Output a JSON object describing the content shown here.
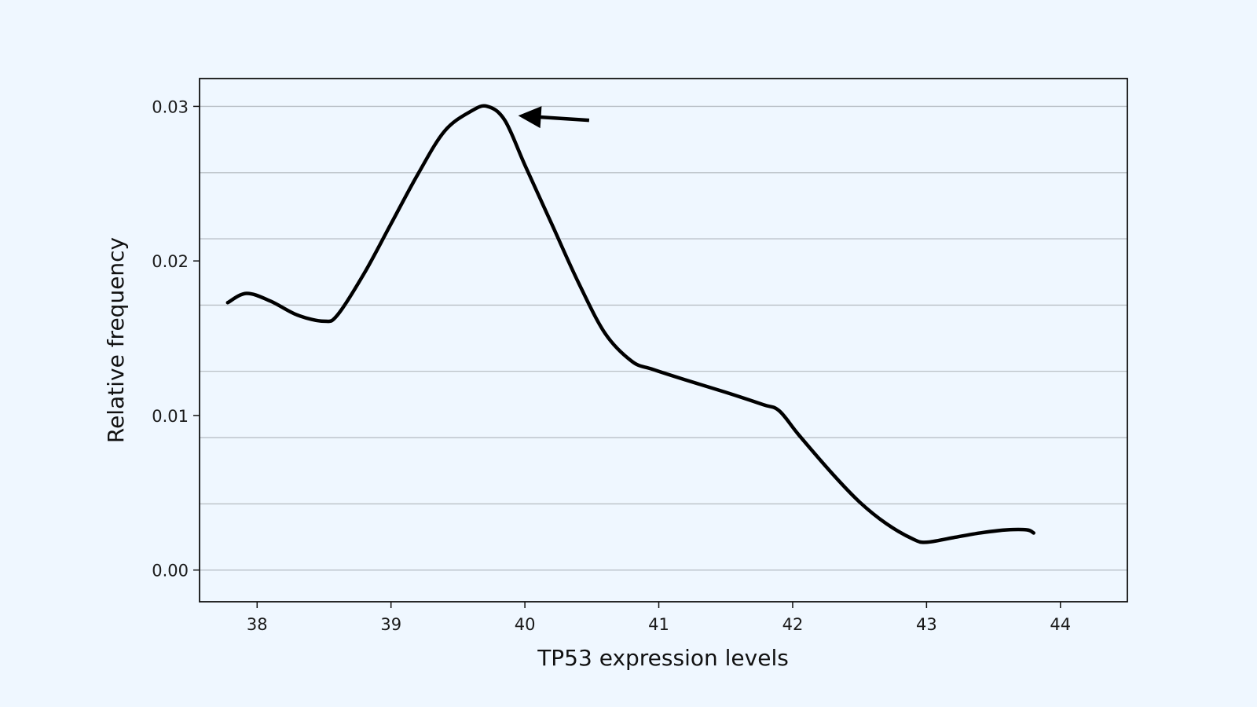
{
  "chart_data": {
    "type": "line",
    "title": "",
    "xlabel": "TP53 expression levels",
    "ylabel": "Relative frequency",
    "xlim": [
      37.57,
      44.5
    ],
    "ylim": [
      -0.00205,
      0.0318
    ],
    "x_ticks": [
      38,
      39,
      40,
      41,
      42,
      43,
      44
    ],
    "x_tick_labels": [
      "38",
      "39",
      "40",
      "41",
      "42",
      "43",
      "44"
    ],
    "y_ticks": [
      0.0,
      0.01,
      0.02,
      0.03
    ],
    "y_tick_labels": [
      "0.00",
      "0.01",
      "0.02",
      "0.03"
    ],
    "grid": "horizontal",
    "grid_lines_y": [
      0.0,
      0.00428,
      0.00857,
      0.01286,
      0.01714,
      0.02143,
      0.02571,
      0.03
    ],
    "legend": "none",
    "series": [
      {
        "color": "#000000",
        "x": [
          37.78,
          37.92,
          38.1,
          38.3,
          38.5,
          38.6,
          38.8,
          39.0,
          39.2,
          39.4,
          39.6,
          39.72,
          39.85,
          40.0,
          40.2,
          40.4,
          40.6,
          40.8,
          40.95,
          41.2,
          41.5,
          41.78,
          41.9,
          42.05,
          42.3,
          42.5,
          42.7,
          42.9,
          43.0,
          43.2,
          43.4,
          43.6,
          43.75,
          43.8
        ],
        "y": [
          0.0173,
          0.0179,
          0.0174,
          0.0165,
          0.0161,
          0.0165,
          0.0192,
          0.0224,
          0.0256,
          0.0284,
          0.0297,
          0.03,
          0.0291,
          0.0262,
          0.0224,
          0.0186,
          0.0153,
          0.0135,
          0.013,
          0.0123,
          0.0115,
          0.0107,
          0.0103,
          0.0087,
          0.0062,
          0.0044,
          0.003,
          0.002,
          0.0018,
          0.0021,
          0.0024,
          0.0026,
          0.0026,
          0.0024
        ]
      }
    ],
    "annotations": [
      {
        "type": "arrow",
        "from": [
          40.48,
          0.0291
        ],
        "to": [
          39.95,
          0.0294
        ]
      }
    ]
  }
}
